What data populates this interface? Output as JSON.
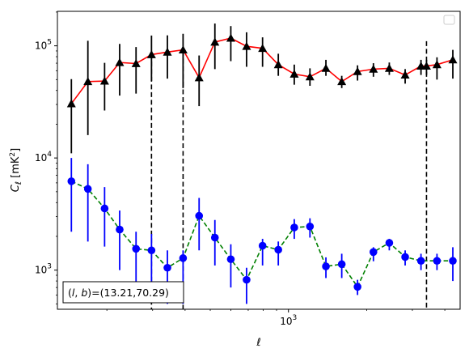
{
  "chart_data": {
    "type": "scatter",
    "title": "",
    "xlabel": "ℓ",
    "ylabel": "C_ℓ [mK²]",
    "xscale": "log",
    "yscale": "log",
    "xlim": [
      129,
      4580
    ],
    "ylim": [
      448,
      203000
    ],
    "x_tick_labels": [
      {
        "value": 1000,
        "label": "10^3"
      }
    ],
    "y_tick_labels": [
      {
        "value": 1000,
        "label": "10^3"
      },
      {
        "value": 10000,
        "label": "10^4"
      },
      {
        "value": 100000,
        "label": "10^5"
      }
    ],
    "grid": false,
    "legend": {
      "placement": "top-right",
      "entries": []
    },
    "annotation": {
      "text": "(l, b)=(13.21,70.29)",
      "placement": "bottom-left"
    },
    "vlines": [
      {
        "x": 297,
        "ymin": 448,
        "ymax": 85000,
        "color": "#000000",
        "style": "dashed"
      },
      {
        "x": 393,
        "ymin": 448,
        "ymax": 90000,
        "color": "#000000",
        "style": "dashed"
      },
      {
        "x": 3400,
        "ymin": 448,
        "ymax": 110000,
        "color": "#000000",
        "style": "dashed"
      }
    ],
    "series": [
      {
        "marker": "triangle",
        "marker_color": "#000000",
        "line_color": "#ff0000",
        "line_style": "solid",
        "errorbar_color": "#000000",
        "x": [
          146,
          169,
          196,
          224,
          259,
          297,
          342,
          393,
          453,
          521,
          600,
          690,
          795,
          914,
          1053,
          1210,
          1394,
          1604,
          1845,
          2124,
          2445,
          2814,
          3238,
          3400,
          3731,
          4294
        ],
        "y": [
          30500,
          48000,
          48500,
          71000,
          69500,
          83500,
          88000,
          92000,
          52000,
          108000,
          117000,
          99000,
          95000,
          68000,
          56000,
          53000,
          63000,
          48000,
          59000,
          62000,
          63000,
          55000,
          66000,
          66000,
          68000,
          75000
        ],
        "yerr_low": [
          19500,
          32000,
          22000,
          35000,
          32000,
          35000,
          37000,
          50000,
          23000,
          46000,
          44000,
          34000,
          30000,
          14000,
          11000,
          9000,
          9000,
          6000,
          10000,
          9000,
          8000,
          9000,
          11000,
          11000,
          18000,
          24000
        ],
        "yerr_high": [
          20000,
          63000,
          22000,
          33000,
          28000,
          40000,
          36000,
          36000,
          30000,
          50000,
          33000,
          33000,
          24000,
          17000,
          12000,
          10000,
          12000,
          6000,
          8000,
          8000,
          8000,
          7000,
          9000,
          9000,
          11000,
          17000
        ]
      },
      {
        "marker": "circle",
        "marker_color": "#0000ff",
        "line_color": "#008000",
        "line_style": "dashed",
        "errorbar_color": "#0000ff",
        "x": [
          146,
          169,
          196,
          224,
          259,
          297,
          342,
          393,
          453,
          521,
          600,
          690,
          795,
          914,
          1053,
          1210,
          1394,
          1604,
          1845,
          2124,
          2445,
          2814,
          3238,
          3731,
          4294
        ],
        "y": [
          6200,
          5300,
          3550,
          2300,
          1550,
          1500,
          1050,
          1280,
          3050,
          1950,
          1250,
          820,
          1650,
          1520,
          2400,
          2450,
          1080,
          1130,
          710,
          1450,
          1750,
          1310,
          1210,
          1210,
          1210
        ],
        "yerr_low": [
          4000,
          3500,
          1930,
          1300,
          850,
          800,
          550,
          780,
          1550,
          850,
          550,
          320,
          550,
          420,
          500,
          500,
          230,
          280,
          110,
          250,
          250,
          210,
          210,
          210,
          410
        ],
        "yerr_high": [
          3800,
          3500,
          1950,
          1100,
          650,
          600,
          450,
          220,
          1350,
          850,
          450,
          230,
          250,
          280,
          450,
          450,
          220,
          270,
          110,
          150,
          150,
          190,
          190,
          190,
          390
        ]
      }
    ]
  }
}
